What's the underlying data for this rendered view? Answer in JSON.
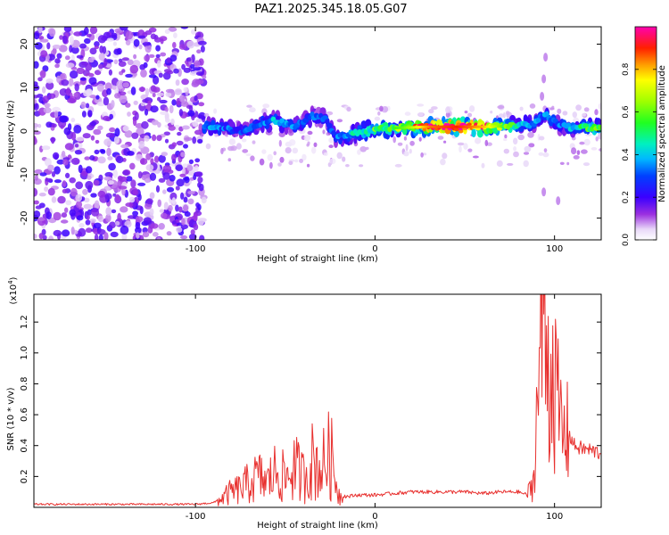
{
  "title": "PAZ1.2025.345.18.05.G07",
  "chart_data": [
    {
      "type": "heatmap",
      "name": "spectrogram",
      "title": "PAZ1.2025.345.18.05.G07",
      "xlabel": "Height of straight line (km)",
      "ylabel": "Frequency (Hz)",
      "xlim": [
        -190,
        126
      ],
      "ylim": [
        -25,
        24
      ],
      "xticks": [
        -100,
        0,
        100
      ],
      "xtick_labels": [
        "-100",
        "0",
        "100"
      ],
      "yticks": [
        -20,
        -10,
        0,
        10,
        20
      ],
      "ytick_labels": [
        "-20",
        "-10",
        "0",
        "10",
        "20"
      ],
      "ridge_note": "strong signal near 0-2 Hz from -96 km to 126 km; diffuse noise below -95 km",
      "ridge": [
        {
          "x": -95,
          "f": 1.2,
          "a": 0.35
        },
        {
          "x": -85,
          "f": 0.5,
          "a": 0.3
        },
        {
          "x": -75,
          "f": 0.0,
          "a": 0.25
        },
        {
          "x": -65,
          "f": 1.5,
          "a": 0.3
        },
        {
          "x": -55,
          "f": 2.5,
          "a": 0.35
        },
        {
          "x": -45,
          "f": 1.0,
          "a": 0.3
        },
        {
          "x": -35,
          "f": 3.5,
          "a": 0.3
        },
        {
          "x": -28,
          "f": 3.0,
          "a": 0.25
        },
        {
          "x": -22,
          "f": -1.5,
          "a": 0.3
        },
        {
          "x": -12,
          "f": -0.5,
          "a": 0.4
        },
        {
          "x": 0,
          "f": 0.5,
          "a": 0.5
        },
        {
          "x": 15,
          "f": 0.8,
          "a": 0.6
        },
        {
          "x": 30,
          "f": 1.0,
          "a": 0.85
        },
        {
          "x": 45,
          "f": 1.0,
          "a": 0.9
        },
        {
          "x": 60,
          "f": 1.0,
          "a": 0.8
        },
        {
          "x": 75,
          "f": 1.2,
          "a": 0.5
        },
        {
          "x": 88,
          "f": 1.5,
          "a": 0.3
        },
        {
          "x": 95,
          "f": 4.0,
          "a": 0.35
        },
        {
          "x": 102,
          "f": 1.5,
          "a": 0.3
        },
        {
          "x": 110,
          "f": 0.8,
          "a": 0.35
        },
        {
          "x": 120,
          "f": 0.8,
          "a": 0.5
        }
      ],
      "colorbar": {
        "label": "Normalized spectral amplitude",
        "range": [
          0,
          1
        ],
        "ticks": [
          0.0,
          0.2,
          0.4,
          0.6,
          0.8
        ],
        "tick_labels": [
          "0.0",
          "0.2",
          "0.4",
          "0.6",
          "0.8"
        ]
      }
    },
    {
      "type": "line",
      "name": "snr",
      "xlabel": "Height of straight line (km)",
      "ylabel": "SNR (10 * v/v)",
      "yscale_label": "(x10",
      "yscale_exponent": "4",
      "yscale_close": ")",
      "xlim": [
        -190,
        126
      ],
      "ylim": [
        0,
        1.38
      ],
      "xticks": [
        -100,
        0,
        100
      ],
      "xtick_labels": [
        "-100",
        "0",
        "100"
      ],
      "yticks": [
        0.2,
        0.4,
        0.6,
        0.8,
        1.0,
        1.2
      ],
      "ytick_labels": [
        "0.2",
        "0.4",
        "0.6",
        "0.8",
        "1.0",
        "1.2"
      ],
      "color": "#e8312f",
      "series": [
        {
          "name": "SNR",
          "x": [
            -190,
            -160,
            -130,
            -100,
            -90,
            -85,
            -80,
            -75,
            -70,
            -65,
            -60,
            -55,
            -50,
            -45,
            -40,
            -35,
            -30,
            -25,
            -22,
            -20,
            -15,
            -10,
            0,
            10,
            20,
            30,
            40,
            50,
            60,
            70,
            80,
            85,
            88,
            90,
            92,
            94,
            95,
            97,
            99,
            101,
            103,
            105,
            108,
            111,
            115,
            120,
            126
          ],
          "y": [
            0.02,
            0.02,
            0.02,
            0.02,
            0.03,
            0.06,
            0.1,
            0.12,
            0.16,
            0.2,
            0.16,
            0.24,
            0.18,
            0.26,
            0.2,
            0.3,
            0.25,
            0.35,
            0.2,
            0.08,
            0.07,
            0.08,
            0.08,
            0.09,
            0.1,
            0.1,
            0.1,
            0.1,
            0.09,
            0.1,
            0.1,
            0.08,
            0.15,
            0.55,
            1.05,
            1.3,
            1.15,
            0.85,
            0.95,
            0.7,
            0.55,
            0.45,
            0.48,
            0.4,
            0.38,
            0.37,
            0.35
          ]
        }
      ]
    }
  ]
}
